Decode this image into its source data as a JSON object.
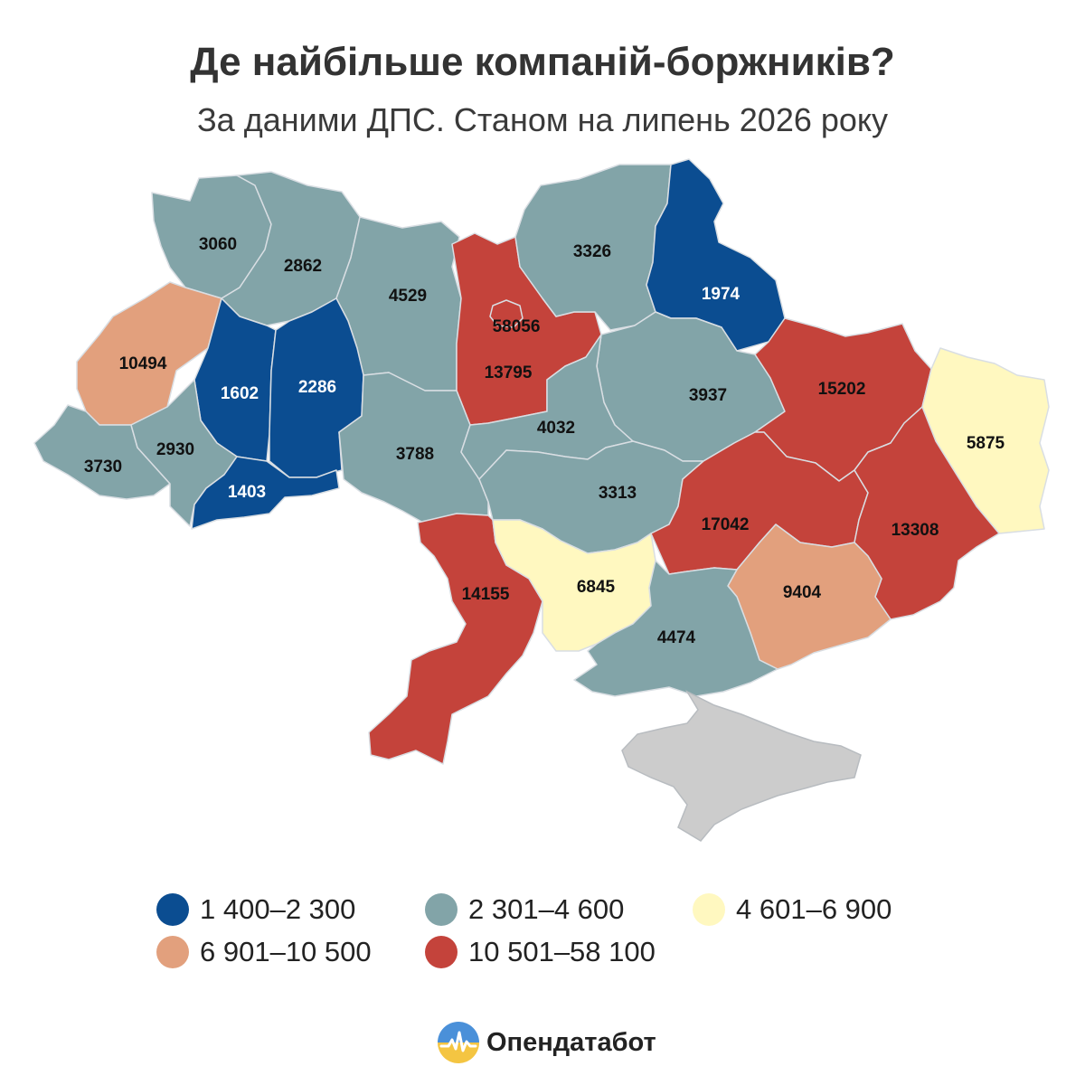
{
  "header": {
    "title": "Де найбільше компаній-боржників?",
    "subtitle": "За даними ДПС. Станом на липень 2026 року"
  },
  "map": {
    "regions": [
      {
        "id": "volyn",
        "value": "3060",
        "class": "c2"
      },
      {
        "id": "rivne",
        "value": "2862",
        "class": "c2"
      },
      {
        "id": "zhytomyr",
        "value": "4529",
        "class": "c2"
      },
      {
        "id": "kyiv-region",
        "value": "13795",
        "class": "c5"
      },
      {
        "id": "kyiv-city",
        "value": "58056",
        "class": "c5"
      },
      {
        "id": "chernihiv",
        "value": "3326",
        "class": "c2"
      },
      {
        "id": "sumy",
        "value": "1974",
        "class": "c1"
      },
      {
        "id": "kharkiv",
        "value": "15202",
        "class": "c5"
      },
      {
        "id": "luhansk",
        "value": "5875",
        "class": "c3"
      },
      {
        "id": "lviv",
        "value": "10494",
        "class": "c4"
      },
      {
        "id": "ternopil",
        "value": "1602",
        "class": "c1"
      },
      {
        "id": "khmelnytskyi",
        "value": "2286",
        "class": "c1"
      },
      {
        "id": "zakarpattia",
        "value": "3730",
        "class": "c2"
      },
      {
        "id": "ivano-frankivsk",
        "value": "2930",
        "class": "c2"
      },
      {
        "id": "chernivtsi",
        "value": "1403",
        "class": "c1"
      },
      {
        "id": "vinnytsia",
        "value": "3788",
        "class": "c2"
      },
      {
        "id": "cherkasy",
        "value": "4032",
        "class": "c2"
      },
      {
        "id": "poltava",
        "value": "3937",
        "class": "c2"
      },
      {
        "id": "kirovohrad",
        "value": "3313",
        "class": "c2"
      },
      {
        "id": "dnipropetrovsk",
        "value": "17042",
        "class": "c5"
      },
      {
        "id": "donetsk",
        "value": "13308",
        "class": "c5"
      },
      {
        "id": "odesa",
        "value": "14155",
        "class": "c5"
      },
      {
        "id": "mykolaiv",
        "value": "6845",
        "class": "c3"
      },
      {
        "id": "zaporizhzhia",
        "value": "9404",
        "class": "c4"
      },
      {
        "id": "kherson",
        "value": "4474",
        "class": "c2"
      },
      {
        "id": "crimea",
        "value": "",
        "class": "nodata"
      }
    ]
  },
  "colors": {
    "c1": "#0b4d91",
    "c2": "#82a4a8",
    "c3": "#fff8c0",
    "c4": "#e2a07d",
    "c5": "#c4433b",
    "nodata": "#cccccc"
  },
  "legend": {
    "items": [
      {
        "label": "1 400–2 300",
        "color": "#0b4d91"
      },
      {
        "label": "2 301–4 600",
        "color": "#82a4a8"
      },
      {
        "label": "4 601–6 900",
        "color": "#fff8c0"
      },
      {
        "label": "6 901–10 500",
        "color": "#e2a07d"
      },
      {
        "label": "10 501–58 100",
        "color": "#c4433b"
      }
    ]
  },
  "brand": {
    "name": "Опендатабот",
    "logo_icon": "opendatabot-logo-icon"
  }
}
